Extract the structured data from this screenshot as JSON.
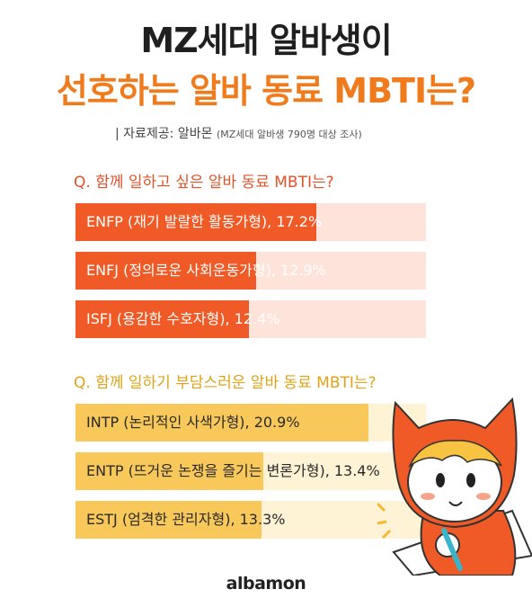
{
  "title_line1": "MZ세대 알바생이",
  "title_line2": "선호하는 알바 동료 MBTI는?",
  "source_main": "| 자료제공: 알바몬",
  "source_note": "(MZ세대 알바생 790명 대상 조사)",
  "logo": "albamon",
  "colors": {
    "preferred": "#ef5a26",
    "burdensome": "#f8c85a",
    "title_accent": "#f07b1c"
  },
  "chart_data": [
    {
      "type": "bar",
      "title": "Q. 함께 일하고 싶은 알바 동료 MBTI는?",
      "categories": [
        "ENFP (재기 발랄한 활동가형)",
        "ENFJ (정의로운 사회운동가형)",
        "ISFJ (용감한 수호자형)"
      ],
      "values": [
        17.2,
        12.9,
        12.4
      ],
      "labels": [
        "ENFP (재기 발랄한 활동가형), 17.2%",
        "ENFJ (정의로운 사회운동가형), 12.9%",
        "ISFJ (용감한 수호자형), 12.4%"
      ],
      "unit": "%",
      "xlim": [
        0,
        25
      ]
    },
    {
      "type": "bar",
      "title": "Q. 함께 일하기 부담스러운 알바 동료 MBTI는?",
      "categories": [
        "INTP (논리적인 사색가형)",
        "ENTP (뜨거운 논쟁을 즐기는 변론가형)",
        "ESTJ (엄격한 관리자형)"
      ],
      "values": [
        20.9,
        13.4,
        13.3
      ],
      "labels": [
        "INTP (논리적인 사색가형), 20.9%",
        "ENTP (뜨거운 논쟁을 즐기는 변론가형), 13.4%",
        "ESTJ (엄격한 관리자형), 13.3%"
      ],
      "unit": "%",
      "xlim": [
        0,
        25
      ]
    }
  ]
}
